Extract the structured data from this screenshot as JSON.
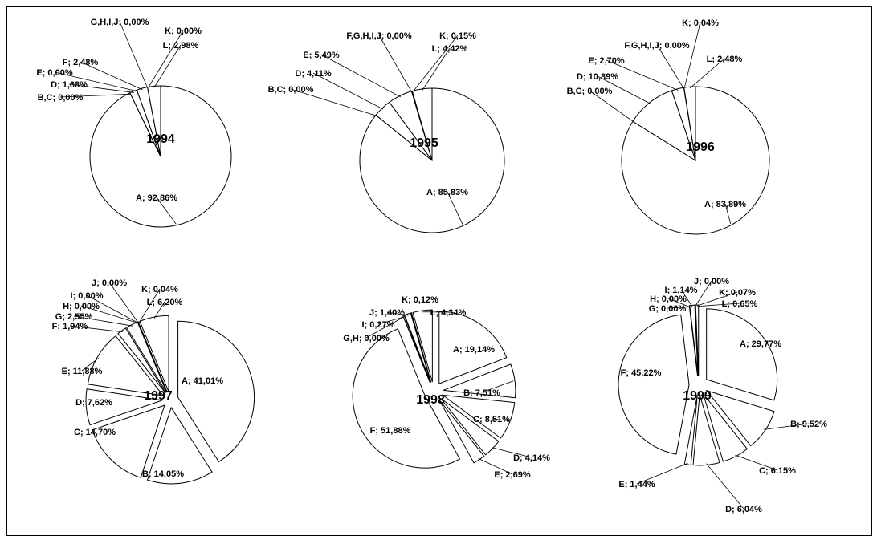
{
  "chart_data": [
    {
      "type": "pie",
      "title": "1994",
      "slices": [
        {
          "label": "A",
          "value": 92.86,
          "text": "A; 92,86%"
        },
        {
          "label": "B,C",
          "value": 0.0,
          "text": "B,C; 0,00%"
        },
        {
          "label": "D",
          "value": 1.68,
          "text": "D; 1,68%"
        },
        {
          "label": "E",
          "value": 0.0,
          "text": "E; 0,00%"
        },
        {
          "label": "F",
          "value": 2.48,
          "text": "F; 2,48%"
        },
        {
          "label": "G,H,I,J",
          "value": 0.0,
          "text": "G,H,I,J; 0,00%"
        },
        {
          "label": "K",
          "value": 0.0,
          "text": "K; 0,00%"
        },
        {
          "label": "L",
          "value": 2.98,
          "text": "L; 2,98%"
        }
      ]
    },
    {
      "type": "pie",
      "title": "1995",
      "slices": [
        {
          "label": "A",
          "value": 85.83,
          "text": "A; 85,83%"
        },
        {
          "label": "B,C",
          "value": 0.0,
          "text": "B,C; 0,00%"
        },
        {
          "label": "D",
          "value": 4.11,
          "text": "D; 4,11%"
        },
        {
          "label": "E",
          "value": 5.49,
          "text": "E; 5,49%"
        },
        {
          "label": "F,G,H,I,J",
          "value": 0.0,
          "text": "F,G,H,I,J; 0,00%"
        },
        {
          "label": "K",
          "value": 0.15,
          "text": "K; 0,15%"
        },
        {
          "label": "L",
          "value": 4.42,
          "text": "L; 4,42%"
        }
      ]
    },
    {
      "type": "pie",
      "title": "1996",
      "slices": [
        {
          "label": "A",
          "value": 83.89,
          "text": "A; 83,89%"
        },
        {
          "label": "B,C",
          "value": 0.0,
          "text": "B,C; 0,00%"
        },
        {
          "label": "D",
          "value": 10.89,
          "text": "D; 10,89%"
        },
        {
          "label": "E",
          "value": 2.7,
          "text": "E; 2,70%"
        },
        {
          "label": "F,G,H,I,J",
          "value": 0.0,
          "text": "F,G,H,I,J; 0,00%"
        },
        {
          "label": "K",
          "value": 0.04,
          "text": "K; 0,04%"
        },
        {
          "label": "L",
          "value": 2.48,
          "text": "L; 2,48%"
        }
      ]
    },
    {
      "type": "pie",
      "title": "1997",
      "slices": [
        {
          "label": "A",
          "value": 41.01,
          "text": "A; 41,01%"
        },
        {
          "label": "B",
          "value": 14.05,
          "text": "B; 14,05%"
        },
        {
          "label": "C",
          "value": 14.7,
          "text": "C; 14,70%"
        },
        {
          "label": "D",
          "value": 7.62,
          "text": "D; 7,62%"
        },
        {
          "label": "E",
          "value": 11.88,
          "text": "E; 11,88%"
        },
        {
          "label": "F",
          "value": 1.94,
          "text": "F; 1,94%"
        },
        {
          "label": "G",
          "value": 2.55,
          "text": "G; 2,55%"
        },
        {
          "label": "H",
          "value": 0.0,
          "text": "H; 0,00%"
        },
        {
          "label": "I",
          "value": 0.0,
          "text": "I; 0,00%"
        },
        {
          "label": "J",
          "value": 0.0,
          "text": "J; 0,00%"
        },
        {
          "label": "K",
          "value": 0.04,
          "text": "K; 0,04%"
        },
        {
          "label": "L",
          "value": 6.2,
          "text": "L; 6,20%"
        }
      ]
    },
    {
      "type": "pie",
      "title": "1998",
      "slices": [
        {
          "label": "A",
          "value": 19.14,
          "text": "A; 19,14%"
        },
        {
          "label": "B",
          "value": 7.51,
          "text": "B; 7,51%"
        },
        {
          "label": "C",
          "value": 8.51,
          "text": "C; 8,51%"
        },
        {
          "label": "D",
          "value": 4.14,
          "text": "D; 4,14%"
        },
        {
          "label": "E",
          "value": 2.69,
          "text": "E; 2,69%"
        },
        {
          "label": "F",
          "value": 51.88,
          "text": "F; 51,88%"
        },
        {
          "label": "G,H",
          "value": 0.0,
          "text": "G,H; 0,00%"
        },
        {
          "label": "I",
          "value": 0.27,
          "text": "I; 0,27%"
        },
        {
          "label": "J",
          "value": 1.4,
          "text": "J; 1,40%"
        },
        {
          "label": "K",
          "value": 0.12,
          "text": "K; 0,12%"
        },
        {
          "label": "L",
          "value": 4.34,
          "text": "L; 4,34%"
        }
      ]
    },
    {
      "type": "pie",
      "title": "1999",
      "slices": [
        {
          "label": "A",
          "value": 29.77,
          "text": "A; 29,77%"
        },
        {
          "label": "B",
          "value": 9.52,
          "text": "B; 9,52%"
        },
        {
          "label": "C",
          "value": 6.15,
          "text": "C; 6,15%"
        },
        {
          "label": "D",
          "value": 6.04,
          "text": "D; 6,04%"
        },
        {
          "label": "E",
          "value": 1.44,
          "text": "E; 1,44%"
        },
        {
          "label": "F",
          "value": 45.22,
          "text": "F; 45,22%"
        },
        {
          "label": "G",
          "value": 0.0,
          "text": "G; 0,00%"
        },
        {
          "label": "H",
          "value": 0.0,
          "text": "H; 0,00%"
        },
        {
          "label": "I",
          "value": 1.14,
          "text": "I; 1,14%"
        },
        {
          "label": "J",
          "value": 0.0,
          "text": "J; 0,00%"
        },
        {
          "label": "K",
          "value": 0.07,
          "text": "K; 0,07%"
        },
        {
          "label": "L",
          "value": 0.65,
          "text": "L; 0,65%"
        }
      ]
    }
  ]
}
